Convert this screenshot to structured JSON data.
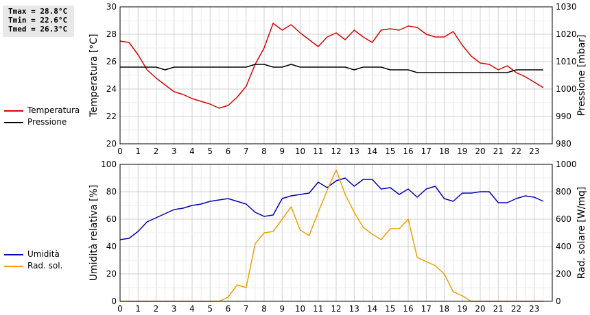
{
  "stats": {
    "tmax": "Tmax = 28.8°C",
    "tmin": "Tmin = 22.6°C",
    "tmed": "Tmed = 26.3°C"
  },
  "chart_data": [
    {
      "type": "line",
      "ylabel": "Temperatura [°C]",
      "y2label": "Pressione [mbar]",
      "x": [
        0,
        0.5,
        1,
        1.5,
        2,
        2.5,
        3,
        3.5,
        4,
        4.5,
        5,
        5.5,
        6,
        6.5,
        7,
        7.5,
        8,
        8.5,
        9,
        9.5,
        10,
        10.5,
        11,
        11.5,
        12,
        12.5,
        13,
        13.5,
        14,
        14.5,
        15,
        15.5,
        16,
        16.5,
        17,
        17.5,
        18,
        18.5,
        19,
        19.5,
        20,
        20.5,
        21,
        21.5,
        22,
        22.5,
        23,
        23.5
      ],
      "xlim": [
        0,
        24
      ],
      "xticks": [
        0,
        1,
        2,
        3,
        4,
        5,
        6,
        7,
        8,
        9,
        10,
        11,
        12,
        13,
        14,
        15,
        16,
        17,
        18,
        19,
        20,
        21,
        22,
        23
      ],
      "ylim": [
        20,
        30
      ],
      "yticks": [
        20,
        22,
        24,
        26,
        28,
        30
      ],
      "y2lim": [
        980,
        1030
      ],
      "y2ticks": [
        980,
        990,
        1000,
        1010,
        1020,
        1030
      ],
      "grid": true,
      "legend_position": "left",
      "series": [
        {
          "name": "Temperatura",
          "axis": "left",
          "color": "#dd0000",
          "values": [
            27.5,
            27.4,
            26.5,
            25.4,
            24.8,
            24.3,
            23.8,
            23.6,
            23.3,
            23.1,
            22.9,
            22.6,
            22.8,
            23.4,
            24.2,
            25.8,
            27.0,
            28.8,
            28.3,
            28.7,
            28.1,
            27.6,
            27.1,
            27.8,
            28.1,
            27.6,
            28.3,
            27.8,
            27.4,
            28.3,
            28.4,
            28.3,
            28.6,
            28.5,
            28.0,
            27.8,
            27.8,
            28.2,
            27.2,
            26.4,
            25.9,
            25.8,
            25.4,
            25.7,
            25.2,
            24.9,
            24.5,
            24.1
          ]
        },
        {
          "name": "Pressione",
          "axis": "right",
          "color": "#000000",
          "values": [
            1008,
            1008,
            1008,
            1008,
            1008,
            1007,
            1008,
            1008,
            1008,
            1008,
            1008,
            1008,
            1008,
            1008,
            1008,
            1009,
            1009,
            1008,
            1008,
            1009,
            1008,
            1008,
            1008,
            1008,
            1008,
            1008,
            1007,
            1008,
            1008,
            1008,
            1007,
            1007,
            1007,
            1006,
            1006,
            1006,
            1006,
            1006,
            1006,
            1006,
            1006,
            1006,
            1006,
            1006,
            1007,
            1007,
            1007,
            1007
          ]
        }
      ]
    },
    {
      "type": "line",
      "ylabel": "Umidità relativa [%]",
      "y2label": "Rad. solare [W/mq]",
      "x": [
        0,
        0.5,
        1,
        1.5,
        2,
        2.5,
        3,
        3.5,
        4,
        4.5,
        5,
        5.5,
        6,
        6.5,
        7,
        7.5,
        8,
        8.5,
        9,
        9.5,
        10,
        10.5,
        11,
        11.5,
        12,
        12.5,
        13,
        13.5,
        14,
        14.5,
        15,
        15.5,
        16,
        16.5,
        17,
        17.5,
        18,
        18.5,
        19,
        19.5,
        20,
        20.5,
        21,
        21.5,
        22,
        22.5,
        23,
        23.5
      ],
      "xlim": [
        0,
        24
      ],
      "xticks": [
        0,
        1,
        2,
        3,
        4,
        5,
        6,
        7,
        8,
        9,
        10,
        11,
        12,
        13,
        14,
        15,
        16,
        17,
        18,
        19,
        20,
        21,
        22,
        23
      ],
      "ylim": [
        0,
        100
      ],
      "yticks": [
        0,
        20,
        40,
        60,
        80,
        100
      ],
      "y2lim": [
        0,
        1000
      ],
      "y2ticks": [
        0,
        200,
        400,
        600,
        800,
        1000
      ],
      "grid": true,
      "legend_position": "left",
      "series": [
        {
          "name": "Umidità",
          "axis": "left",
          "color": "#0000bb",
          "values": [
            45,
            46,
            51,
            58,
            61,
            64,
            67,
            68,
            70,
            71,
            73,
            74,
            75,
            73,
            71,
            65,
            62,
            63,
            75,
            77,
            78,
            79,
            87,
            83,
            88,
            90,
            84,
            89,
            89,
            82,
            83,
            78,
            82,
            76,
            82,
            84,
            75,
            73,
            79,
            79,
            80,
            80,
            72,
            72,
            75,
            77,
            76,
            73
          ]
        },
        {
          "name": "Rad. sol.",
          "axis": "right",
          "color": "#f0a000",
          "values": [
            0,
            0,
            0,
            0,
            0,
            0,
            0,
            0,
            0,
            0,
            0,
            0,
            30,
            120,
            100,
            420,
            500,
            510,
            600,
            690,
            520,
            480,
            650,
            810,
            960,
            780,
            650,
            540,
            490,
            450,
            530,
            530,
            600,
            320,
            290,
            260,
            200,
            70,
            40,
            0,
            0,
            0,
            0,
            0,
            0,
            0,
            0,
            0
          ]
        }
      ]
    }
  ]
}
